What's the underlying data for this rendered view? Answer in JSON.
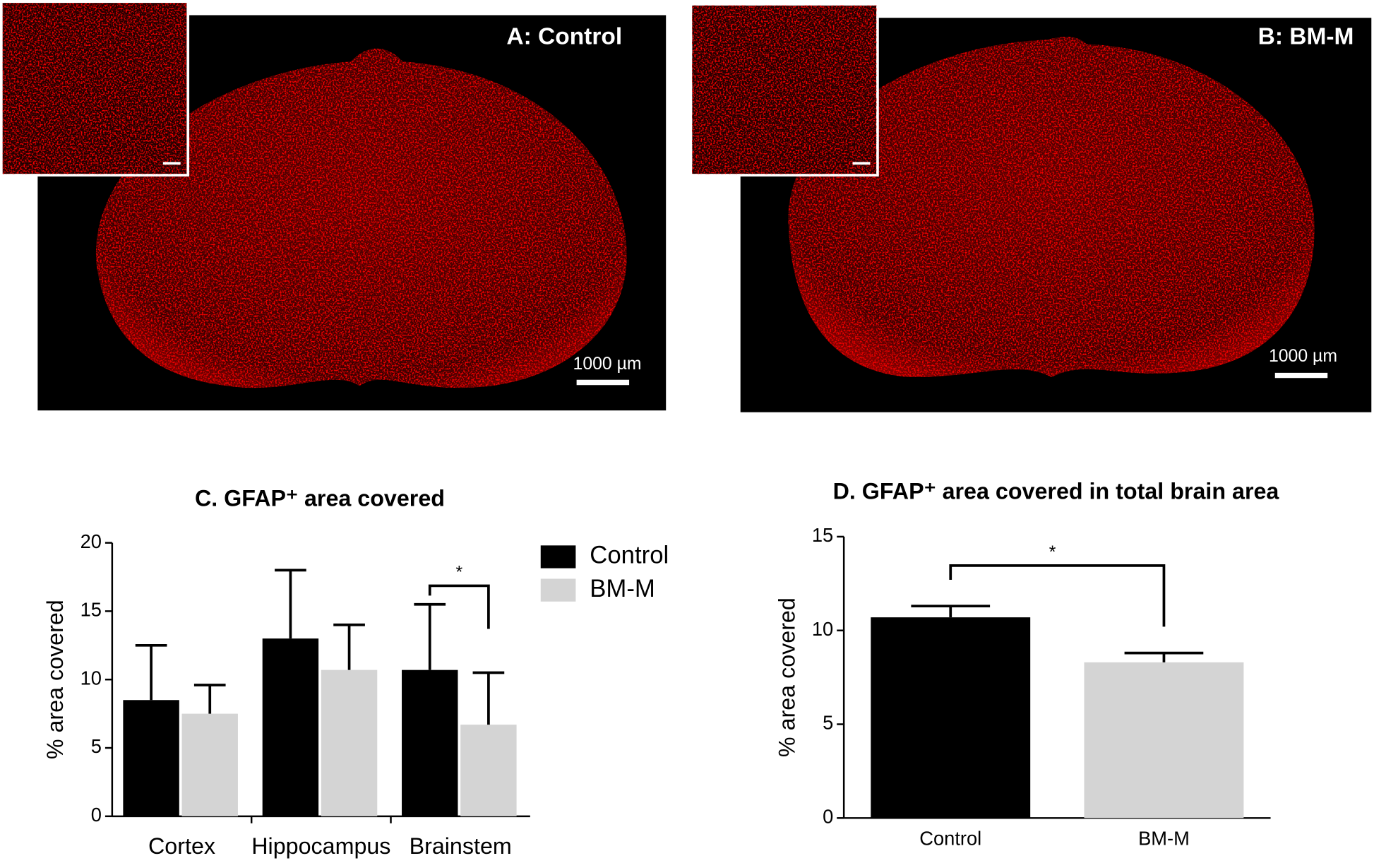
{
  "panels": [
    {
      "label": "A: Control",
      "scale_bar": "1000 µm"
    },
    {
      "label": "B: BM-M",
      "scale_bar": "1000 µm"
    }
  ],
  "chart_data": [
    {
      "type": "bar",
      "title": "C. GFAP⁺ area covered",
      "y_label": "% area covered",
      "categories": [
        "Cortex",
        "Hippocampus",
        "Brainstem"
      ],
      "series": [
        {
          "name": "Control",
          "color": "#000000",
          "values": [
            8.5,
            13,
            10.7
          ],
          "errors": [
            4,
            5,
            4.8
          ]
        },
        {
          "name": "BM-M",
          "color": "#d4d4d4",
          "values": [
            7.5,
            10.7,
            6.7
          ],
          "errors": [
            2.1,
            3.3,
            3.8
          ]
        }
      ],
      "ylim": [
        0,
        20
      ],
      "yticks": [
        0,
        5,
        10,
        15,
        20
      ],
      "legend": "right",
      "annotation": "*"
    },
    {
      "type": "bar",
      "title": "D. GFAP⁺ area covered in total brain area",
      "y_label": "% area covered",
      "categories": [
        "Control",
        "BM-M"
      ],
      "values": [
        10.7,
        8.3
      ],
      "errors": [
        0.6,
        0.5
      ],
      "colors": [
        "#000000",
        "#d4d4d4"
      ],
      "ylim": [
        0,
        15
      ],
      "yticks": [
        0,
        5,
        10,
        15
      ],
      "annotation": "*"
    }
  ]
}
